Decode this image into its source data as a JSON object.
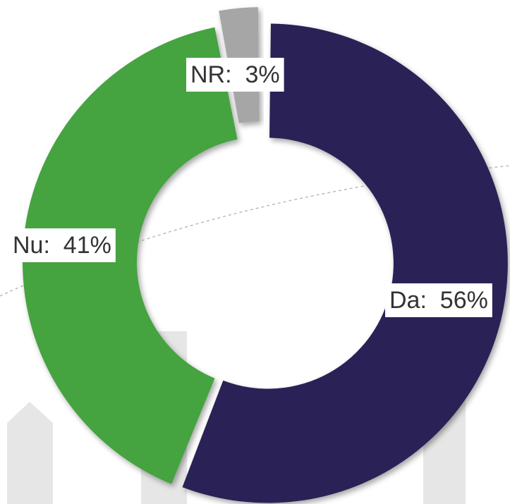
{
  "chart_data": {
    "type": "donut",
    "values": [
      56,
      41,
      3
    ],
    "value_labels": [
      "Da:  56%",
      "Nu:  41%",
      "NR:  3%"
    ],
    "colors": [
      "#2c2456",
      "#44a340",
      "#a6a6a6"
    ]
  }
}
